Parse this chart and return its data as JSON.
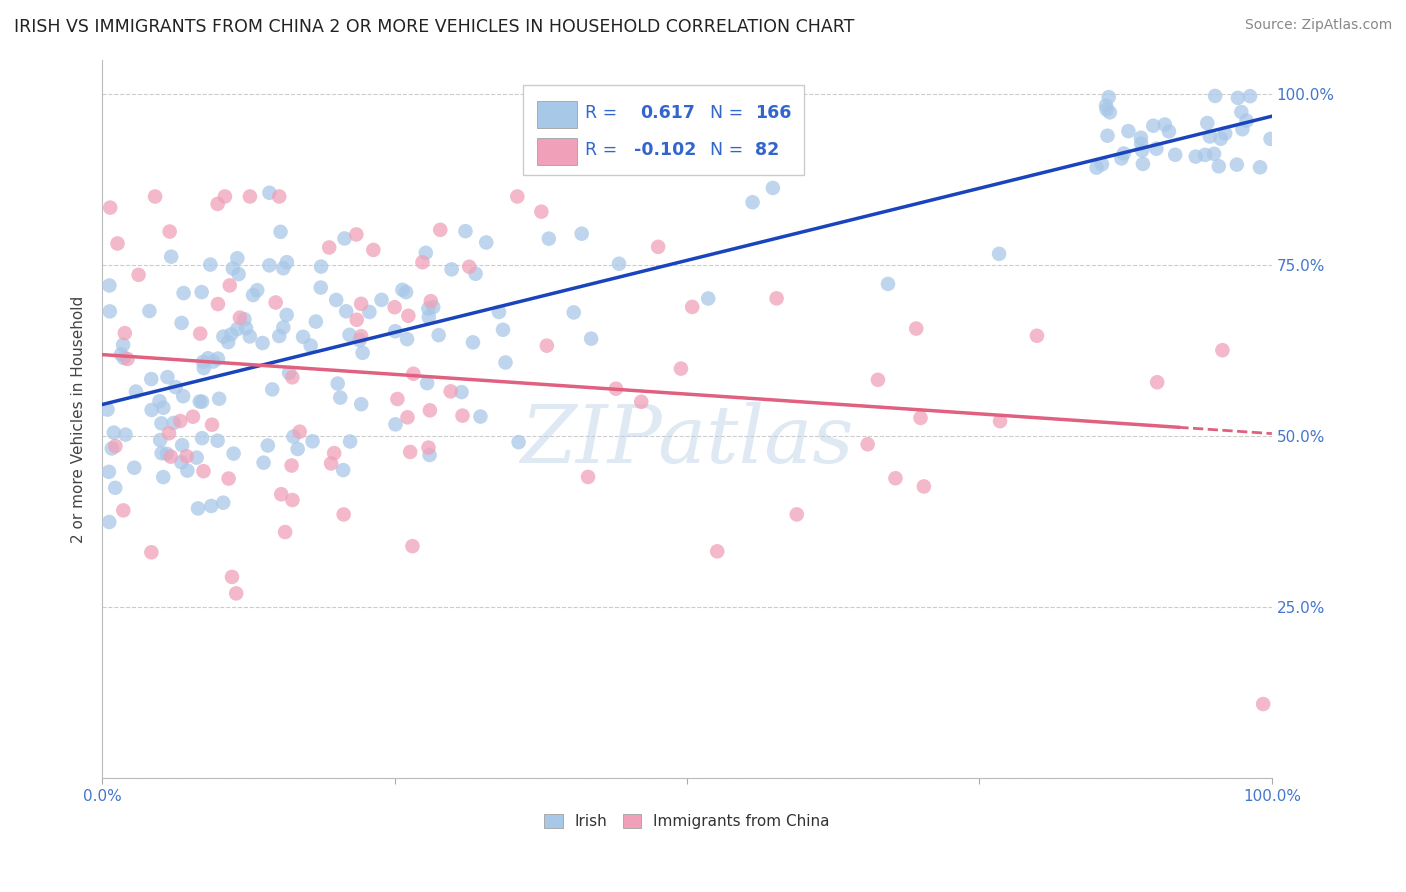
{
  "title": "IRISH VS IMMIGRANTS FROM CHINA 2 OR MORE VEHICLES IN HOUSEHOLD CORRELATION CHART",
  "source": "Source: ZipAtlas.com",
  "ylabel": "2 or more Vehicles in Household",
  "xlim": [
    0.0,
    1.0
  ],
  "ylim": [
    0.0,
    1.05
  ],
  "ytick_values": [
    0.0,
    0.25,
    0.5,
    0.75,
    1.0
  ],
  "irish_R": 0.617,
  "irish_N": 166,
  "china_R": -0.102,
  "china_N": 82,
  "irish_color": "#a8c8e8",
  "china_color": "#f0a0b8",
  "irish_line_color": "#1a44bb",
  "china_line_color": "#e06080",
  "watermark": "ZIPatlas",
  "legend_irish_label": "Irish",
  "legend_china_label": "Immigrants from China",
  "bg_color": "#ffffff",
  "grid_color": "#cccccc",
  "r_label_color": "#3366cc",
  "tick_color": "#4477cc",
  "title_color": "#222222",
  "source_color": "#888888",
  "ylabel_color": "#444444"
}
